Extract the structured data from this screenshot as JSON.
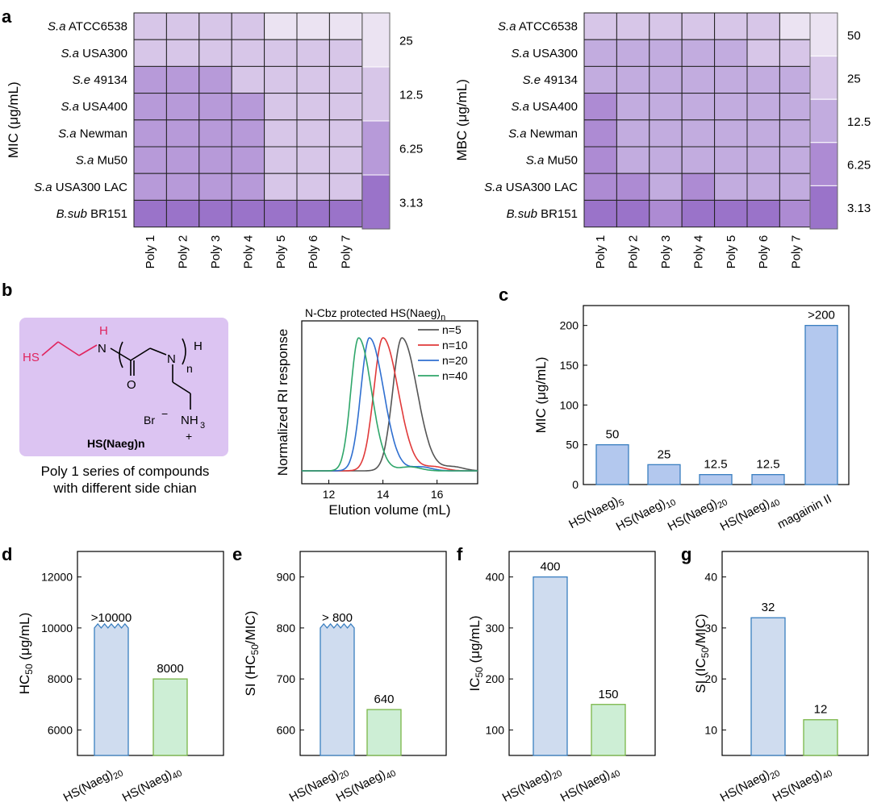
{
  "panel_labels": [
    "a",
    "b",
    "c",
    "d",
    "e",
    "f",
    "g"
  ],
  "panel_b": {
    "structure_name": "HS(Naeg)n",
    "structure_atoms": [
      "HS",
      "H",
      "N",
      "O",
      "N",
      "H",
      "n",
      "Br",
      "−",
      "NH",
      "3",
      "+"
    ],
    "caption_line1": "Poly 1 series of compounds",
    "caption_line2": "with different side chian"
  },
  "chart_data": [
    {
      "type": "heatmap",
      "id": "mic-heatmap",
      "ylabel": "MIC (μg/mL)",
      "rows": [
        {
          "it": "S.a",
          "rest": " ATCC6538"
        },
        {
          "it": "S.a",
          "rest": " USA300"
        },
        {
          "it": "S.e",
          "rest": " 49134"
        },
        {
          "it": "S.a",
          "rest": " USA400"
        },
        {
          "it": "S.a",
          "rest": " Newman"
        },
        {
          "it": "S.a",
          "rest": " Mu50"
        },
        {
          "it": "S.a",
          "rest": " USA300 LAC"
        },
        {
          "it": "B.sub",
          "rest": " BR151"
        }
      ],
      "columns": [
        "Poly 1",
        "Poly 2",
        "Poly 3",
        "Poly 4",
        "Poly 5",
        "Poly 6",
        "Poly 7"
      ],
      "values": [
        [
          12.5,
          12.5,
          12.5,
          12.5,
          25,
          25,
          25
        ],
        [
          12.5,
          12.5,
          12.5,
          12.5,
          12.5,
          12.5,
          12.5
        ],
        [
          6.25,
          6.25,
          6.25,
          12.5,
          12.5,
          12.5,
          12.5
        ],
        [
          6.25,
          6.25,
          6.25,
          6.25,
          12.5,
          12.5,
          12.5
        ],
        [
          6.25,
          6.25,
          6.25,
          6.25,
          12.5,
          12.5,
          12.5
        ],
        [
          6.25,
          6.25,
          6.25,
          6.25,
          12.5,
          12.5,
          12.5
        ],
        [
          6.25,
          6.25,
          6.25,
          6.25,
          12.5,
          12.5,
          12.5
        ],
        [
          3.13,
          3.13,
          3.13,
          3.13,
          3.13,
          3.13,
          3.13
        ]
      ],
      "colorbar": [
        {
          "label": "25",
          "color": "#ebe3f2"
        },
        {
          "label": "12.5",
          "color": "#d7c6e8"
        },
        {
          "label": "6.25",
          "color": "#b79ad9"
        },
        {
          "label": "3.13",
          "color": "#9a73c9"
        }
      ]
    },
    {
      "type": "heatmap",
      "id": "mbc-heatmap",
      "ylabel": "MBC (μg/mL)",
      "rows": [
        {
          "it": "S.a",
          "rest": " ATCC6538"
        },
        {
          "it": "S.a",
          "rest": " USA300"
        },
        {
          "it": "S.e",
          "rest": " 49134"
        },
        {
          "it": "S.a",
          "rest": " USA400"
        },
        {
          "it": "S.a",
          "rest": " Newman"
        },
        {
          "it": "S.a",
          "rest": " Mu50"
        },
        {
          "it": "S.a",
          "rest": " USA300 LAC"
        },
        {
          "it": "B.sub",
          "rest": " BR151"
        }
      ],
      "columns": [
        "Poly 1",
        "Poly 2",
        "Poly 3",
        "Poly 4",
        "Poly 5",
        "Poly 6",
        "Poly 7"
      ],
      "values": [
        [
          25,
          25,
          25,
          25,
          25,
          25,
          50
        ],
        [
          12.5,
          12.5,
          12.5,
          12.5,
          12.5,
          25,
          25
        ],
        [
          12.5,
          12.5,
          12.5,
          12.5,
          12.5,
          12.5,
          12.5
        ],
        [
          6.25,
          12.5,
          12.5,
          12.5,
          12.5,
          12.5,
          12.5
        ],
        [
          6.25,
          12.5,
          12.5,
          12.5,
          12.5,
          12.5,
          12.5
        ],
        [
          6.25,
          12.5,
          12.5,
          12.5,
          12.5,
          12.5,
          12.5
        ],
        [
          6.25,
          6.25,
          12.5,
          6.25,
          12.5,
          12.5,
          12.5
        ],
        [
          3.13,
          3.13,
          6.25,
          3.13,
          3.13,
          3.13,
          6.25
        ]
      ],
      "colorbar": [
        {
          "label": "50",
          "color": "#ebe3f2"
        },
        {
          "label": "25",
          "color": "#d7c6e8"
        },
        {
          "label": "12.5",
          "color": "#c2acdf"
        },
        {
          "label": "6.25",
          "color": "#ad8bd3"
        },
        {
          "label": "3.13",
          "color": "#9a73c9"
        }
      ]
    },
    {
      "type": "line",
      "id": "gpc-chart",
      "title": "N-Cbz protected HS(Naeg)n",
      "xlabel": "Elution volume (mL)",
      "ylabel": "Normalized RI response",
      "xlim": [
        11,
        17.5
      ],
      "xticks": [
        12,
        14,
        16
      ],
      "series": [
        {
          "name": "n=5",
          "peak": 14.7,
          "width": 0.45,
          "color": "#555555"
        },
        {
          "name": "n=10",
          "peak": 14.0,
          "width": 0.45,
          "color": "#e03a3a"
        },
        {
          "name": "n=20",
          "peak": 13.5,
          "width": 0.42,
          "color": "#2f6fd0"
        },
        {
          "name": "n=40",
          "peak": 13.1,
          "width": 0.38,
          "color": "#2fa66a"
        }
      ]
    },
    {
      "type": "bar",
      "id": "mic-bar-chart",
      "ylabel": "MIC (μg/mL)",
      "ylim": [
        0,
        225
      ],
      "yticks": [
        0,
        50,
        100,
        150,
        200
      ],
      "categories": [
        {
          "base": "HS(Naeg)",
          "sub": "5"
        },
        {
          "base": "HS(Naeg)",
          "sub": "10"
        },
        {
          "base": "HS(Naeg)",
          "sub": "20"
        },
        {
          "base": "HS(Naeg)",
          "sub": "40"
        },
        {
          "base": "magainin II",
          "sub": ""
        }
      ],
      "values": [
        50,
        25,
        12.5,
        12.5,
        200
      ],
      "labels": [
        "50",
        "25",
        "12.5",
        "12.5",
        ">200"
      ],
      "fill": "#b3c8ee",
      "stroke": "#3a7fc0"
    },
    {
      "type": "bar",
      "id": "hc50-chart",
      "ylabel": "HC50 (μg/mL)",
      "ylim": [
        5000,
        13000
      ],
      "yticks": [
        6000,
        8000,
        10000,
        12000
      ],
      "categories": [
        {
          "base": "HS(Naeg)",
          "sub": "20"
        },
        {
          "base": "HS(Naeg)",
          "sub": "40"
        }
      ],
      "values": [
        10000,
        8000
      ],
      "labels": [
        ">10000",
        "8000"
      ],
      "broken": [
        true,
        false
      ]
    },
    {
      "type": "bar",
      "id": "si-hc50-chart",
      "ylabel": "SI (HC50/MIC)",
      "ylim": [
        550,
        950
      ],
      "yticks": [
        600,
        700,
        800,
        900
      ],
      "categories": [
        {
          "base": "HS(Naeg)",
          "sub": "20"
        },
        {
          "base": "HS(Naeg)",
          "sub": "40"
        }
      ],
      "values": [
        800,
        640
      ],
      "labels": [
        "> 800",
        "640"
      ],
      "broken": [
        true,
        false
      ]
    },
    {
      "type": "bar",
      "id": "ic50-chart",
      "ylabel": "IC50 (μg/mL)",
      "ylim": [
        50,
        450
      ],
      "yticks": [
        100,
        200,
        300,
        400
      ],
      "categories": [
        {
          "base": "HS(Naeg)",
          "sub": "20"
        },
        {
          "base": "HS(Naeg)",
          "sub": "40"
        }
      ],
      "values": [
        400,
        150
      ],
      "labels": [
        "400",
        "150"
      ],
      "broken": [
        false,
        false
      ]
    },
    {
      "type": "bar",
      "id": "si-ic50-chart",
      "ylabel": "SI (IC50/MIC)",
      "ylim": [
        5,
        45
      ],
      "yticks": [
        10,
        20,
        30,
        40
      ],
      "categories": [
        {
          "base": "HS(Naeg)",
          "sub": "20"
        },
        {
          "base": "HS(Naeg)",
          "sub": "40"
        }
      ],
      "values": [
        32,
        12
      ],
      "labels": [
        "32",
        "12"
      ],
      "broken": [
        false,
        false
      ]
    }
  ],
  "colors": {
    "blue_bar_fill": "#cfdcef",
    "blue_bar_stroke": "#3a7fc0",
    "green_bar_fill": "#cdeed5",
    "green_bar_stroke": "#7ab648",
    "structure_bg": "#dcc4f2",
    "thiol_red": "#e0245e"
  }
}
